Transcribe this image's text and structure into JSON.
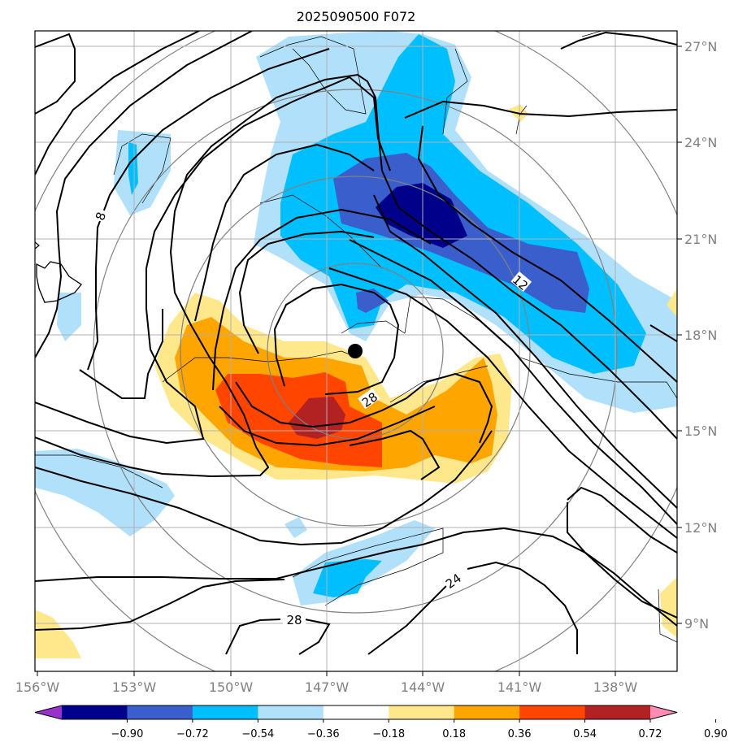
{
  "title": "2025090500 F072",
  "map": {
    "lon_range": [
      -156,
      -136
    ],
    "lat_range": [
      7.5,
      27.5
    ],
    "lon_ticks": [
      "156°W",
      "153°W",
      "150°W",
      "147°W",
      "144°W",
      "141°W",
      "138°W"
    ],
    "lat_ticks": [
      "27°N",
      "24°N",
      "21°N",
      "18°N",
      "15°N",
      "12°N",
      "9°N"
    ],
    "grid": true,
    "storm_center": {
      "lon": -146.1,
      "lat": 17.5
    },
    "contour_labels": [
      "8",
      "12",
      "28",
      "24",
      "28"
    ],
    "fill_colors": {
      "neg_072": "#00008b",
      "neg_054": "#3a5fcd",
      "neg_036": "#00bfff",
      "neg_018": "#b0e0fa",
      "pos_018": "#ffe88c",
      "pos_036": "#ffa500",
      "pos_054": "#ff4500",
      "pos_072": "#b22222"
    }
  },
  "colorbar": {
    "colors": [
      "#9932cc",
      "#00008b",
      "#3a5fcd",
      "#00bfff",
      "#b0e0fa",
      "#ffffff",
      "#ffe88c",
      "#ffa500",
      "#ff4500",
      "#b22222",
      "#ff8cb4"
    ],
    "ticks": [
      "−0.90",
      "−0.72",
      "−0.54",
      "−0.36",
      "−0.18",
      "0.18",
      "0.36",
      "0.54",
      "0.72",
      "0.90"
    ]
  }
}
